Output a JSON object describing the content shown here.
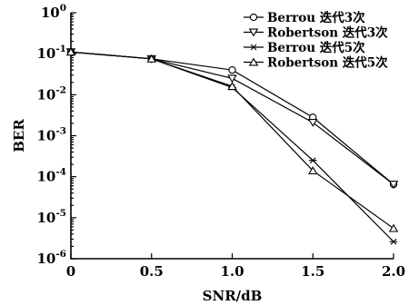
{
  "chart_data": {
    "type": "line",
    "xlabel": "SNR/dB",
    "ylabel": "BER",
    "x_ticks": [
      "0",
      "0.5",
      "1.0",
      "1.5",
      "2.0"
    ],
    "y_ticks": [
      {
        "base": "10",
        "exp": "0"
      },
      {
        "base": "10",
        "exp": "-1"
      },
      {
        "base": "10",
        "exp": "-2"
      },
      {
        "base": "10",
        "exp": "-3"
      },
      {
        "base": "10",
        "exp": "-4"
      },
      {
        "base": "10",
        "exp": "-5"
      },
      {
        "base": "10",
        "exp": "-6"
      }
    ],
    "xlim": [
      0,
      2.0
    ],
    "ylim": [
      1e-06,
      1
    ],
    "yscale": "log",
    "grid": false,
    "legend_position": "top-right",
    "x": [
      0,
      0.5,
      1.0,
      1.5,
      2.0
    ],
    "series": [
      {
        "name": "Berrou 迭代3次",
        "marker": "circle",
        "values": [
          0.11,
          0.075,
          0.04,
          0.0028,
          6.5e-05
        ]
      },
      {
        "name": "Robertson 迭代3次",
        "marker": "triangle-down",
        "values": [
          0.11,
          0.075,
          0.025,
          0.0021,
          6.5e-05
        ]
      },
      {
        "name": "Berrou 迭代5次",
        "marker": "star",
        "values": [
          0.11,
          0.075,
          0.015,
          0.00025,
          2.6e-06
        ]
      },
      {
        "name": "Robertson 迭代5次",
        "marker": "triangle-up",
        "values": [
          0.11,
          0.075,
          0.016,
          0.00014,
          5.5e-06
        ]
      }
    ]
  }
}
